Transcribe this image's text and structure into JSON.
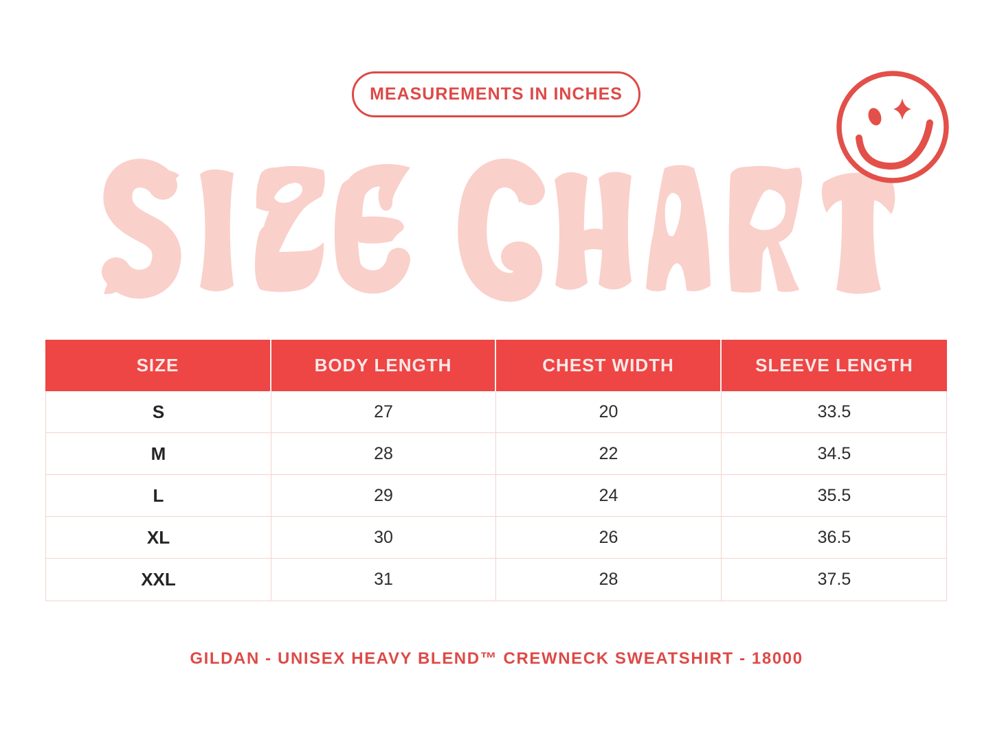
{
  "colors": {
    "red": "#DD4A47",
    "header_red": "#EE4545",
    "title_pink": "#FAD0CA",
    "grid_pink": "#F5D2CD",
    "dark_text": "#2E2C2C",
    "header_text": "#F9E9E7",
    "background": "#FFFFFF"
  },
  "badge": {
    "label": "MEASUREMENTS IN INCHES"
  },
  "title": {
    "text": "SIZE CHART"
  },
  "smiley": {
    "name": "winking-smiley-icon"
  },
  "chart_data": {
    "type": "table",
    "title": "SIZE CHART",
    "note": "MEASUREMENTS IN INCHES",
    "columns": [
      "SIZE",
      "BODY LENGTH",
      "CHEST WIDTH",
      "SLEEVE LENGTH"
    ],
    "rows": [
      [
        "S",
        "27",
        "20",
        "33.5"
      ],
      [
        "M",
        "28",
        "22",
        "34.5"
      ],
      [
        "L",
        "29",
        "24",
        "35.5"
      ],
      [
        "XL",
        "30",
        "26",
        "36.5"
      ],
      [
        "XXL",
        "31",
        "28",
        "37.5"
      ]
    ]
  },
  "footer": {
    "text": "GILDAN - UNISEX HEAVY BLEND™ CREWNECK SWEATSHIRT - 18000"
  }
}
